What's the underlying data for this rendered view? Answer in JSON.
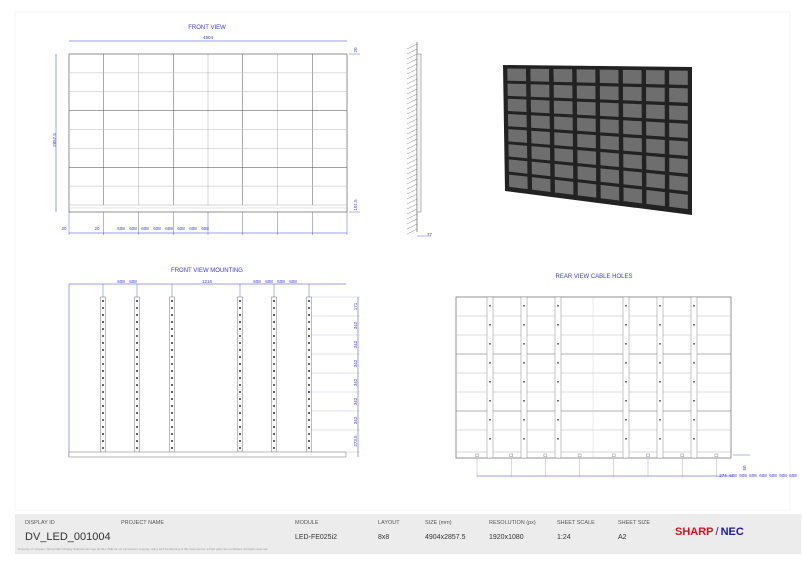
{
  "views": {
    "front": {
      "title": "FRONT VIEW",
      "width_dim": "4904",
      "height_dim": "2857.5",
      "top_offset": "20",
      "bottom_offset": "101.5",
      "left_margin": "20",
      "first_module": "20",
      "module_widths": [
        "608",
        "608",
        "608",
        "608",
        "608",
        "608",
        "608",
        "608"
      ]
    },
    "side": {
      "depth_dim": "77"
    },
    "mounting": {
      "title": "FRONT VIEW MOUNTING",
      "top_dims_left": [
        "608",
        "608"
      ],
      "center_dim": "1216",
      "top_dims_right": [
        "608",
        "608",
        "608",
        "608"
      ],
      "right_dims": [
        "171",
        "342",
        "342",
        "342",
        "342",
        "342",
        "342",
        "273.5"
      ]
    },
    "rear": {
      "title": "REAR VIEW CABLE HOLES",
      "side_dim": "50",
      "bottom_dims": [
        "274",
        "608",
        "608",
        "608",
        "608",
        "608",
        "608",
        "608"
      ]
    }
  },
  "titleblock": {
    "display_id_label": "DISPLAY ID",
    "display_id": "DV_LED_001004",
    "project_name_label": "PROJECT NAME",
    "project_name": "",
    "module_label": "MODULE",
    "module": "LED-FE025i2",
    "layout_label": "LAYOUT",
    "layout": "8x8",
    "size_label": "SIZE (mm)",
    "size": "4904x2857.5",
    "resolution_label": "RESOLUTION (px)",
    "resolution": "1920x1080",
    "scale_label": "SHEET SCALE",
    "scale": "1:24",
    "sheet_size_label": "SHEET SIZE",
    "sheet_size": "A2",
    "legal": "Property of company Sharp NEC Display Solutions Europe GmbH. Without our permission copying, using and transferring of this document to a third party are prohibited. All rights reserved.",
    "logo_sharp": "SHARP",
    "logo_sep": "/",
    "logo_nec": "NEC"
  },
  "colors": {
    "dimension": "#3a3ae0",
    "sharp_red": "#e0101e",
    "nec_blue": "#1a1a9e",
    "titleblock_bg": "#ececec"
  }
}
